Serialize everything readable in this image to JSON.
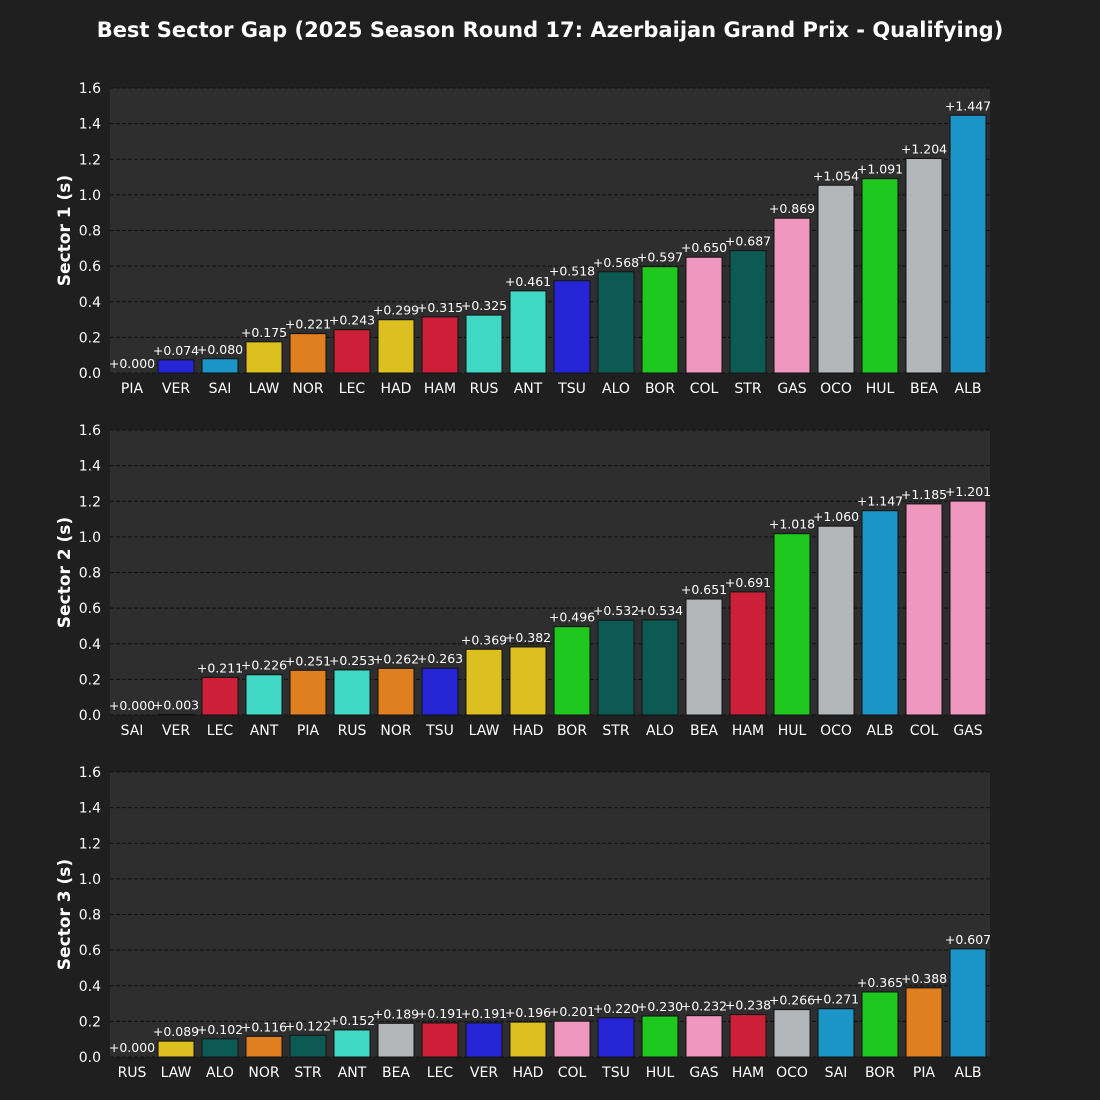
{
  "title": "Best Sector Gap (2025 Season Round 17: Azerbaijan Grand Prix - Qualifying)",
  "colors": {
    "figure_bg": "#1f1f1f",
    "axes_bg": "#2e2e2e",
    "grid": "#111111",
    "text": "#ffffff",
    "bar_edge": "#111111"
  },
  "chart_data": [
    {
      "type": "bar",
      "ylabel": "Sector 1 (s)",
      "ylim": [
        0,
        1.6
      ],
      "yticks": [
        "0.0",
        "0.2",
        "0.4",
        "0.6",
        "0.8",
        "1.0",
        "1.2",
        "1.4",
        "1.6"
      ],
      "grid": "horizontal-dashed",
      "categories": [
        "PIA",
        "VER",
        "SAI",
        "LAW",
        "NOR",
        "LEC",
        "HAD",
        "HAM",
        "RUS",
        "ANT",
        "TSU",
        "ALO",
        "BOR",
        "COL",
        "STR",
        "GAS",
        "OCO",
        "HUL",
        "BEA",
        "ALB"
      ],
      "values": [
        0.0,
        0.074,
        0.08,
        0.175,
        0.221,
        0.243,
        0.299,
        0.315,
        0.325,
        0.461,
        0.518,
        0.568,
        0.597,
        0.65,
        0.687,
        0.869,
        1.054,
        1.091,
        1.204,
        1.447
      ],
      "labels": [
        "+0.000",
        "+0.074",
        "+0.080",
        "+0.175",
        "+0.221",
        "+0.243",
        "+0.299",
        "+0.315",
        "+0.325",
        "+0.461",
        "+0.518",
        "+0.568",
        "+0.597",
        "+0.650",
        "+0.687",
        "+0.869",
        "+1.054",
        "+1.091",
        "+1.204",
        "+1.447"
      ],
      "colors": [
        "#ff8000",
        "#2525d6",
        "#1b94c6",
        "#dcc020",
        "#e07f20",
        "#cc1f38",
        "#dcc020",
        "#cc1f38",
        "#40d9c5",
        "#40d9c5",
        "#2525d6",
        "#0d5a55",
        "#1ec81e",
        "#f097c0",
        "#0d5a55",
        "#f097c0",
        "#b4b7ba",
        "#1ec81e",
        "#b4b7ba",
        "#1b94c6"
      ]
    },
    {
      "type": "bar",
      "ylabel": "Sector 2 (s)",
      "ylim": [
        0,
        1.6
      ],
      "yticks": [
        "0.0",
        "0.2",
        "0.4",
        "0.6",
        "0.8",
        "1.0",
        "1.2",
        "1.4",
        "1.6"
      ],
      "grid": "horizontal-dashed",
      "categories": [
        "SAI",
        "VER",
        "LEC",
        "ANT",
        "PIA",
        "RUS",
        "NOR",
        "TSU",
        "LAW",
        "HAD",
        "BOR",
        "STR",
        "ALO",
        "BEA",
        "HAM",
        "HUL",
        "OCO",
        "ALB",
        "COL",
        "GAS"
      ],
      "values": [
        0.0,
        0.003,
        0.211,
        0.226,
        0.251,
        0.253,
        0.262,
        0.263,
        0.369,
        0.382,
        0.496,
        0.532,
        0.534,
        0.651,
        0.691,
        1.018,
        1.06,
        1.147,
        1.185,
        1.201
      ],
      "labels": [
        "+0.000",
        "+0.003",
        "+0.211",
        "+0.226",
        "+0.251",
        "+0.253",
        "+0.262",
        "+0.263",
        "+0.369",
        "+0.382",
        "+0.496",
        "+0.532",
        "+0.534",
        "+0.651",
        "+0.691",
        "+1.018",
        "+1.060",
        "+1.147",
        "+1.185",
        "+1.201"
      ],
      "colors": [
        "#1b94c6",
        "#2525d6",
        "#cc1f38",
        "#40d9c5",
        "#e07f20",
        "#40d9c5",
        "#e07f20",
        "#2525d6",
        "#dcc020",
        "#dcc020",
        "#1ec81e",
        "#0d5a55",
        "#0d5a55",
        "#b4b7ba",
        "#cc1f38",
        "#1ec81e",
        "#b4b7ba",
        "#1b94c6",
        "#f097c0",
        "#f097c0"
      ]
    },
    {
      "type": "bar",
      "ylabel": "Sector 3 (s)",
      "ylim": [
        0,
        1.6
      ],
      "yticks": [
        "0.0",
        "0.2",
        "0.4",
        "0.6",
        "0.8",
        "1.0",
        "1.2",
        "1.4",
        "1.6"
      ],
      "grid": "horizontal-dashed",
      "categories": [
        "RUS",
        "LAW",
        "ALO",
        "NOR",
        "STR",
        "ANT",
        "BEA",
        "LEC",
        "VER",
        "HAD",
        "COL",
        "TSU",
        "HUL",
        "GAS",
        "HAM",
        "OCO",
        "SAI",
        "BOR",
        "PIA",
        "ALB"
      ],
      "values": [
        0.0,
        0.089,
        0.102,
        0.116,
        0.122,
        0.152,
        0.189,
        0.191,
        0.191,
        0.196,
        0.201,
        0.22,
        0.23,
        0.232,
        0.238,
        0.266,
        0.271,
        0.365,
        0.388,
        0.607
      ],
      "labels": [
        "+0.000",
        "+0.089",
        "+0.102",
        "+0.116",
        "+0.122",
        "+0.152",
        "+0.189",
        "+0.191",
        "+0.191",
        "+0.196",
        "+0.201",
        "+0.220",
        "+0.230",
        "+0.232",
        "+0.238",
        "+0.266",
        "+0.271",
        "+0.365",
        "+0.388",
        "+0.607"
      ],
      "colors": [
        "#40d9c5",
        "#dcc020",
        "#0d5a55",
        "#e07f20",
        "#0d5a55",
        "#40d9c5",
        "#b4b7ba",
        "#cc1f38",
        "#2525d6",
        "#dcc020",
        "#f097c0",
        "#2525d6",
        "#1ec81e",
        "#f097c0",
        "#cc1f38",
        "#b4b7ba",
        "#1b94c6",
        "#1ec81e",
        "#e07f20",
        "#1b94c6"
      ]
    }
  ]
}
